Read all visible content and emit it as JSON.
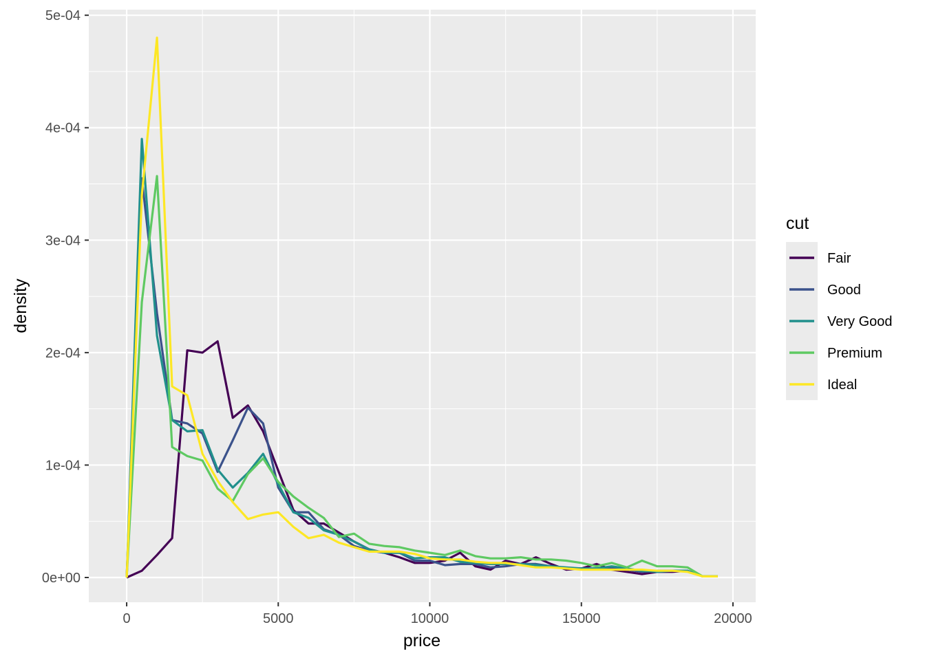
{
  "chart_data": {
    "type": "line",
    "xlabel": "price",
    "ylabel": "density",
    "xlim": [
      -1250,
      20750
    ],
    "ylim": [
      -2.2e-05,
      0.000505
    ],
    "x_ticks": [
      0,
      5000,
      10000,
      15000,
      20000
    ],
    "x_tick_labels": [
      "0",
      "5000",
      "10000",
      "15000",
      "20000"
    ],
    "y_ticks": [
      0,
      0.0001,
      0.0002,
      0.0003,
      0.0004,
      0.0005
    ],
    "y_tick_labels": [
      "0e+00",
      "1e-04",
      "2e-04",
      "3e-04",
      "4e-04",
      "5e-04"
    ],
    "grid": true,
    "legend": {
      "title": "cut",
      "position": "right"
    },
    "x": [
      0,
      500,
      1000,
      1500,
      2000,
      2500,
      3000,
      3500,
      4000,
      4500,
      5000,
      5500,
      6000,
      6500,
      7000,
      7500,
      8000,
      8500,
      9000,
      9500,
      10000,
      10500,
      11000,
      11500,
      12000,
      12500,
      13000,
      13500,
      14000,
      14500,
      15000,
      15500,
      16000,
      16500,
      17000,
      17500,
      18000,
      18500,
      19000,
      19500
    ],
    "series": [
      {
        "name": "Fair",
        "color": "#440154",
        "values": [
          0.0,
          6e-06,
          2e-05,
          3.5e-05,
          0.000202,
          0.0002,
          0.00021,
          0.000142,
          0.000153,
          0.00013,
          9.5e-05,
          6e-05,
          4.8e-05,
          4.8e-05,
          4e-05,
          3.2e-05,
          2.5e-05,
          2.2e-05,
          1.8e-05,
          1.3e-05,
          1.3e-05,
          1.5e-05,
          2.2e-05,
          1e-05,
          7e-06,
          1.5e-05,
          1.2e-05,
          1.8e-05,
          1.2e-05,
          7e-06,
          8e-06,
          1.2e-05,
          7e-06,
          5e-06,
          3e-06,
          5e-06,
          5e-06,
          6e-06,
          1e-06,
          1e-06
        ]
      },
      {
        "name": "Good",
        "color": "#3b528b",
        "values": [
          0.0,
          0.000355,
          0.000235,
          0.00014,
          0.000137,
          0.000128,
          9.4e-05,
          0.000122,
          0.000151,
          0.000137,
          8e-05,
          5.8e-05,
          5.8e-05,
          4.3e-05,
          3.8e-05,
          2.8e-05,
          2.4e-05,
          2.2e-05,
          2.2e-05,
          1.5e-05,
          1.5e-05,
          1.1e-05,
          1.2e-05,
          1.2e-05,
          9e-06,
          1e-05,
          1.2e-05,
          1.2e-05,
          1e-05,
          8e-06,
          8e-06,
          8e-06,
          8e-06,
          7e-06,
          5e-06,
          6e-06,
          6e-06,
          6e-06,
          1e-06,
          1e-06
        ]
      },
      {
        "name": "Very Good",
        "color": "#21908c",
        "values": [
          0.0,
          0.00039,
          0.000215,
          0.00014,
          0.00013,
          0.000131,
          9.6e-05,
          8e-05,
          9.3e-05,
          0.00011,
          8.3e-05,
          5.8e-05,
          5.3e-05,
          4.2e-05,
          3.8e-05,
          3.2e-05,
          2.5e-05,
          2.2e-05,
          2.2e-05,
          1.7e-05,
          1.8e-05,
          1.8e-05,
          1.4e-05,
          1.3e-05,
          1.2e-05,
          1.2e-05,
          1.2e-05,
          1.1e-05,
          1e-05,
          9e-06,
          8e-06,
          8e-06,
          1e-05,
          8e-06,
          6e-06,
          5e-06,
          6e-06,
          6e-06,
          1e-06,
          1e-06
        ]
      },
      {
        "name": "Premium",
        "color": "#5ec962",
        "values": [
          0.0,
          0.000245,
          0.000357,
          0.000116,
          0.000108,
          0.000104,
          7.9e-05,
          6.8e-05,
          9.2e-05,
          0.000106,
          8.5e-05,
          7.2e-05,
          6.2e-05,
          5.3e-05,
          3.6e-05,
          3.9e-05,
          3e-05,
          2.8e-05,
          2.7e-05,
          2.4e-05,
          2.2e-05,
          2e-05,
          2.4e-05,
          1.9e-05,
          1.7e-05,
          1.7e-05,
          1.8e-05,
          1.6e-05,
          1.6e-05,
          1.5e-05,
          1.3e-05,
          1e-05,
          1.3e-05,
          9e-06,
          1.5e-05,
          1e-05,
          1e-05,
          9e-06,
          1e-06,
          1e-06
        ]
      },
      {
        "name": "Ideal",
        "color": "#fde725",
        "values": [
          0.0,
          0.00034,
          0.00048,
          0.00017,
          0.000162,
          0.00011,
          8.6e-05,
          6.7e-05,
          5.2e-05,
          5.6e-05,
          5.8e-05,
          4.5e-05,
          3.5e-05,
          3.8e-05,
          3.1e-05,
          2.7e-05,
          2.3e-05,
          2.3e-05,
          2.3e-05,
          2.1e-05,
          1.7e-05,
          1.6e-05,
          1.6e-05,
          1.4e-05,
          1.3e-05,
          1.3e-05,
          1.1e-05,
          9e-06,
          9e-06,
          8e-06,
          7e-06,
          7e-06,
          7e-06,
          7e-06,
          7e-06,
          6e-06,
          6e-06,
          5e-06,
          1e-06,
          1e-06
        ]
      }
    ]
  }
}
